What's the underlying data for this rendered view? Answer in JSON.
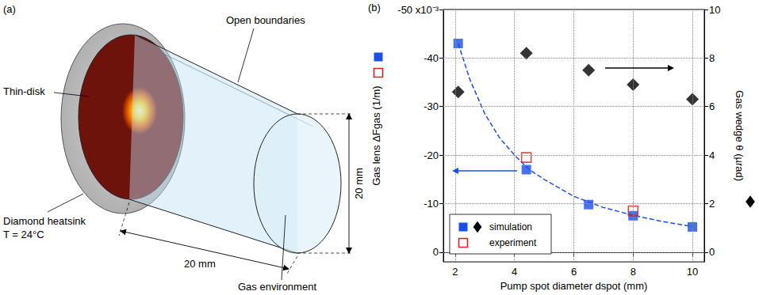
{
  "diagram": {
    "panel_label": "(a)",
    "labels": {
      "open_boundaries": "Open boundaries",
      "thin_disk": "Thin-disk",
      "heatsink": "Diamond heatsink",
      "heatsink_temperature": "T = 24°C",
      "length": "20 mm",
      "diameter": "20 mm",
      "gas": "Gas environment"
    }
  },
  "chart_data": {
    "type": "scatter",
    "panel_label": "(b)",
    "xlabel": "Pump spot diameter dspot (mm)",
    "ylabel": "Gas lens ΔFgas (1/m)",
    "y2label": "Gas wedge θ (µrad)",
    "xlim": [
      1.6,
      10.4
    ],
    "xticks": [
      2,
      4,
      6,
      8,
      10
    ],
    "ylim": [
      0.002,
      -0.05
    ],
    "yticks": [
      0,
      {
        "value": -0.01,
        "label": "-10"
      },
      {
        "value": -0.02,
        "label": "-20"
      },
      {
        "value": -0.03,
        "label": "-30"
      },
      {
        "value": -0.04,
        "label": "-40"
      },
      {
        "value": -0.05,
        "label": "-50 x10⁻³"
      }
    ],
    "y2lim": [
      -0.4,
      10
    ],
    "y2ticks": [
      0,
      2,
      4,
      6,
      8,
      10
    ],
    "grid": true,
    "legend": "lower left",
    "series": [
      {
        "type": "line",
        "line_style": "dashed",
        "color": "#1a4fe8",
        "x": [
          2.1,
          2.5,
          3,
          3.5,
          4,
          4.5,
          5,
          6,
          7,
          8,
          9,
          10
        ],
        "values": [
          -0.043,
          -0.0355,
          -0.0285,
          -0.0235,
          -0.02,
          -0.017,
          -0.015,
          -0.0115,
          -0.0092,
          -0.0076,
          -0.0063,
          -0.0053
        ]
      },
      {
        "name": "simulation",
        "marker": "square",
        "color": "#1a4fe8",
        "x": [
          2.1,
          4.4,
          6.5,
          8,
          10
        ],
        "values": [
          -0.043,
          -0.017,
          -0.0098,
          -0.0075,
          -0.0052
        ]
      },
      {
        "name": "experiment",
        "marker": "open_square",
        "color": "#e02020",
        "x": [
          4.4,
          8
        ],
        "values": [
          -0.0195,
          -0.0085
        ]
      },
      {
        "name": "simulation",
        "marker": "diamond",
        "color": "#000000",
        "axis": "y2",
        "x": [
          2.1,
          4.4,
          6.5,
          8,
          10
        ],
        "values": [
          6.6,
          8.2,
          7.5,
          6.9,
          6.3
        ]
      }
    ]
  }
}
